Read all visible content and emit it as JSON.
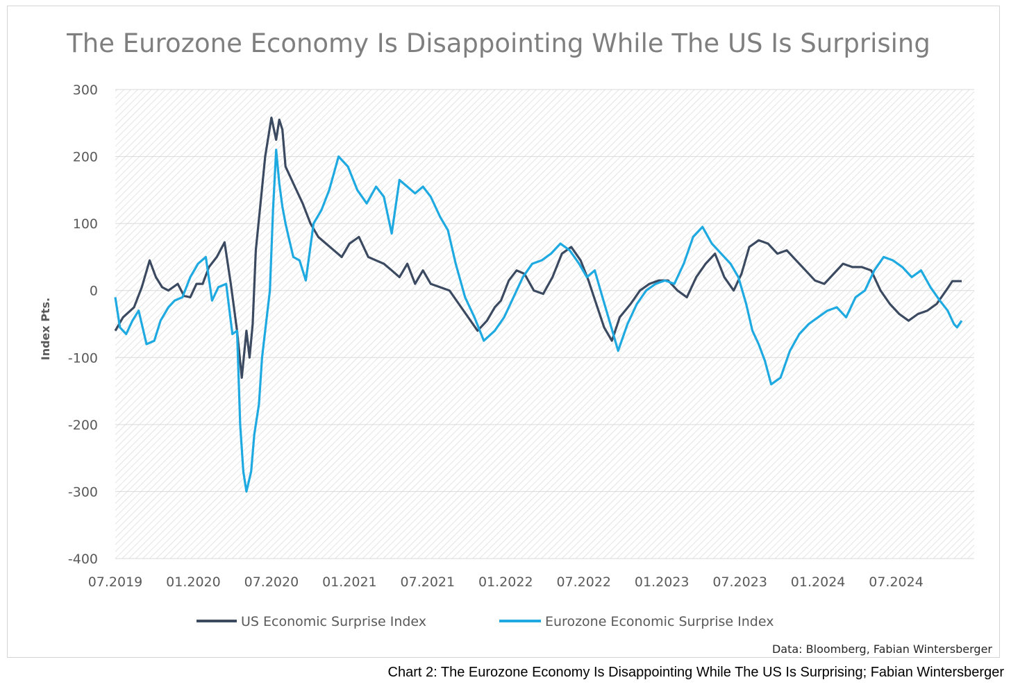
{
  "caption": "Chart 2: The Eurozone Economy Is Disappointing While The US Is Surprising; Fabian Wintersberger",
  "chart_data": {
    "type": "line",
    "title": "The Eurozone Economy Is Disappointing While The US Is Surprising",
    "xlabel": "",
    "ylabel": "Index Pts.",
    "ylim": [
      -400,
      300
    ],
    "yticks": [
      300,
      200,
      100,
      0,
      -100,
      -200,
      -300,
      -400
    ],
    "ytick_labels": [
      "300",
      "200",
      "100",
      "0",
      "-100",
      "-200",
      "-300",
      "-400"
    ],
    "xlim": [
      2019.5,
      2025.0
    ],
    "xticks": [
      2019.5,
      2020.0,
      2020.5,
      2021.0,
      2021.5,
      2022.0,
      2022.5,
      2023.0,
      2023.5,
      2024.0,
      2024.5
    ],
    "xtick_labels": [
      "07.2019",
      "01.2020",
      "07.2020",
      "01.2021",
      "07.2021",
      "01.2022",
      "07.2022",
      "01.2023",
      "07.2023",
      "01.2024",
      "07.2024"
    ],
    "grid": true,
    "legend_position": "bottom",
    "source": "Data: Bloomberg, Fabian Wintersberger",
    "series": [
      {
        "name": "US Economic Surprise Index",
        "color": "#3b4a60",
        "x": [
          2019.5,
          2019.55,
          2019.62,
          2019.67,
          2019.72,
          2019.76,
          2019.8,
          2019.84,
          2019.9,
          2019.94,
          2019.98,
          2020.02,
          2020.06,
          2020.1,
          2020.15,
          2020.2,
          2020.24,
          2020.28,
          2020.31,
          2020.34,
          2020.36,
          2020.38,
          2020.4,
          2020.43,
          2020.46,
          2020.5,
          2020.53,
          2020.55,
          2020.57,
          2020.59,
          2020.62,
          2020.65,
          2020.7,
          2020.75,
          2020.8,
          2020.85,
          2020.9,
          2020.95,
          2021.0,
          2021.06,
          2021.12,
          2021.17,
          2021.22,
          2021.27,
          2021.32,
          2021.37,
          2021.42,
          2021.47,
          2021.52,
          2021.58,
          2021.64,
          2021.7,
          2021.76,
          2021.82,
          2021.88,
          2021.93,
          2021.97,
          2022.02,
          2022.07,
          2022.12,
          2022.18,
          2022.24,
          2022.3,
          2022.36,
          2022.42,
          2022.48,
          2022.53,
          2022.58,
          2022.63,
          2022.68,
          2022.73,
          2022.8,
          2022.86,
          2022.92,
          2022.98,
          2023.04,
          2023.1,
          2023.16,
          2023.22,
          2023.28,
          2023.34,
          2023.4,
          2023.46,
          2023.51,
          2023.56,
          2023.62,
          2023.68,
          2023.74,
          2023.8,
          2023.86,
          2023.92,
          2023.98,
          2024.04,
          2024.1,
          2024.16,
          2024.22,
          2024.28,
          2024.34,
          2024.4,
          2024.46,
          2024.52,
          2024.58,
          2024.64,
          2024.7,
          2024.76,
          2024.82,
          2024.86,
          2024.89,
          2024.92
        ],
        "values": [
          -60,
          -40,
          -25,
          5,
          45,
          20,
          5,
          0,
          10,
          -8,
          -10,
          10,
          10,
          35,
          50,
          72,
          10,
          -60,
          -130,
          -60,
          -100,
          -50,
          60,
          130,
          200,
          258,
          225,
          255,
          240,
          185,
          170,
          155,
          130,
          100,
          80,
          70,
          60,
          50,
          70,
          80,
          50,
          45,
          40,
          30,
          20,
          40,
          10,
          30,
          10,
          5,
          0,
          -20,
          -40,
          -60,
          -45,
          -25,
          -15,
          15,
          30,
          25,
          0,
          -5,
          20,
          55,
          65,
          45,
          15,
          -20,
          -55,
          -75,
          -40,
          -20,
          0,
          10,
          15,
          15,
          0,
          -10,
          20,
          40,
          55,
          20,
          0,
          25,
          65,
          75,
          70,
          55,
          60,
          45,
          30,
          15,
          10,
          25,
          40,
          35,
          35,
          30,
          0,
          -20,
          -35,
          -45,
          -35,
          -30,
          -20,
          0,
          14,
          14,
          14
        ]
      },
      {
        "name": "Eurozone Economic Surprise Index",
        "color": "#1ea9e1",
        "x": [
          2019.5,
          2019.53,
          2019.57,
          2019.61,
          2019.65,
          2019.7,
          2019.75,
          2019.79,
          2019.84,
          2019.88,
          2019.93,
          2019.98,
          2020.03,
          2020.08,
          2020.12,
          2020.16,
          2020.21,
          2020.25,
          2020.28,
          2020.3,
          2020.32,
          2020.34,
          2020.37,
          2020.39,
          2020.42,
          2020.44,
          2020.46,
          2020.49,
          2020.51,
          2020.53,
          2020.55,
          2020.57,
          2020.59,
          2020.61,
          2020.64,
          2020.68,
          2020.72,
          2020.77,
          2020.82,
          2020.87,
          2020.93,
          2020.99,
          2021.05,
          2021.11,
          2021.17,
          2021.22,
          2021.27,
          2021.32,
          2021.37,
          2021.42,
          2021.47,
          2021.52,
          2021.58,
          2021.63,
          2021.68,
          2021.74,
          2021.8,
          2021.86,
          2021.93,
          2021.99,
          2022.05,
          2022.11,
          2022.17,
          2022.23,
          2022.29,
          2022.35,
          2022.41,
          2022.47,
          2022.52,
          2022.57,
          2022.62,
          2022.67,
          2022.72,
          2022.78,
          2022.84,
          2022.9,
          2022.96,
          2023.02,
          2023.08,
          2023.14,
          2023.2,
          2023.26,
          2023.32,
          2023.38,
          2023.44,
          2023.49,
          2023.54,
          2023.58,
          2023.62,
          2023.66,
          2023.7,
          2023.76,
          2023.82,
          2023.88,
          2023.94,
          2024.0,
          2024.06,
          2024.12,
          2024.18,
          2024.24,
          2024.3,
          2024.36,
          2024.42,
          2024.48,
          2024.54,
          2024.6,
          2024.66,
          2024.72,
          2024.78,
          2024.83,
          2024.87,
          2024.89,
          2024.92
        ],
        "values": [
          -10,
          -55,
          -65,
          -45,
          -30,
          -80,
          -75,
          -45,
          -25,
          -15,
          -10,
          20,
          40,
          50,
          -15,
          5,
          10,
          -65,
          -60,
          -200,
          -270,
          -300,
          -270,
          -215,
          -170,
          -100,
          -60,
          0,
          120,
          210,
          160,
          125,
          100,
          80,
          50,
          45,
          15,
          100,
          120,
          150,
          200,
          185,
          150,
          130,
          155,
          140,
          85,
          165,
          155,
          145,
          155,
          140,
          110,
          90,
          40,
          -10,
          -40,
          -75,
          -60,
          -40,
          -10,
          20,
          40,
          45,
          55,
          70,
          60,
          40,
          20,
          30,
          -10,
          -50,
          -90,
          -50,
          -20,
          0,
          10,
          15,
          10,
          40,
          80,
          95,
          70,
          55,
          40,
          20,
          -20,
          -60,
          -80,
          -105,
          -140,
          -130,
          -90,
          -65,
          -50,
          -40,
          -30,
          -25,
          -40,
          -10,
          0,
          30,
          50,
          45,
          35,
          20,
          30,
          5,
          -15,
          -30,
          -50,
          -55,
          -45
        ]
      }
    ]
  }
}
